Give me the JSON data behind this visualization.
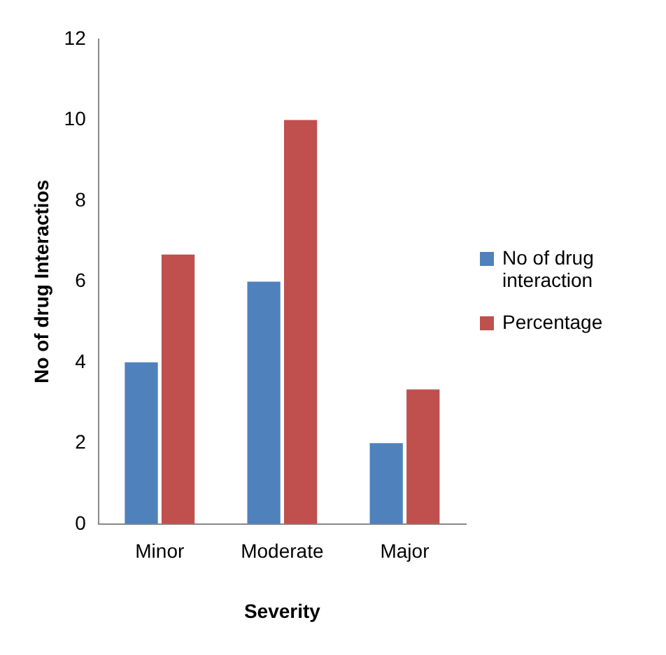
{
  "chart_data": {
    "type": "bar",
    "xlabel": "Severity",
    "ylabel": "No of drug Interactios",
    "categories": [
      "Minor",
      "Moderate",
      "Major"
    ],
    "series": [
      {
        "name": "No of drug interaction",
        "color": "#4f81bd",
        "values": [
          4,
          6,
          2
        ]
      },
      {
        "name": "Percentage",
        "color": "#c0504d",
        "values": [
          6.67,
          10,
          3.33
        ]
      }
    ],
    "ylim": [
      0,
      12
    ],
    "yticks": [
      0,
      2,
      4,
      6,
      8,
      10,
      12
    ],
    "grid": false,
    "legend": "right"
  }
}
